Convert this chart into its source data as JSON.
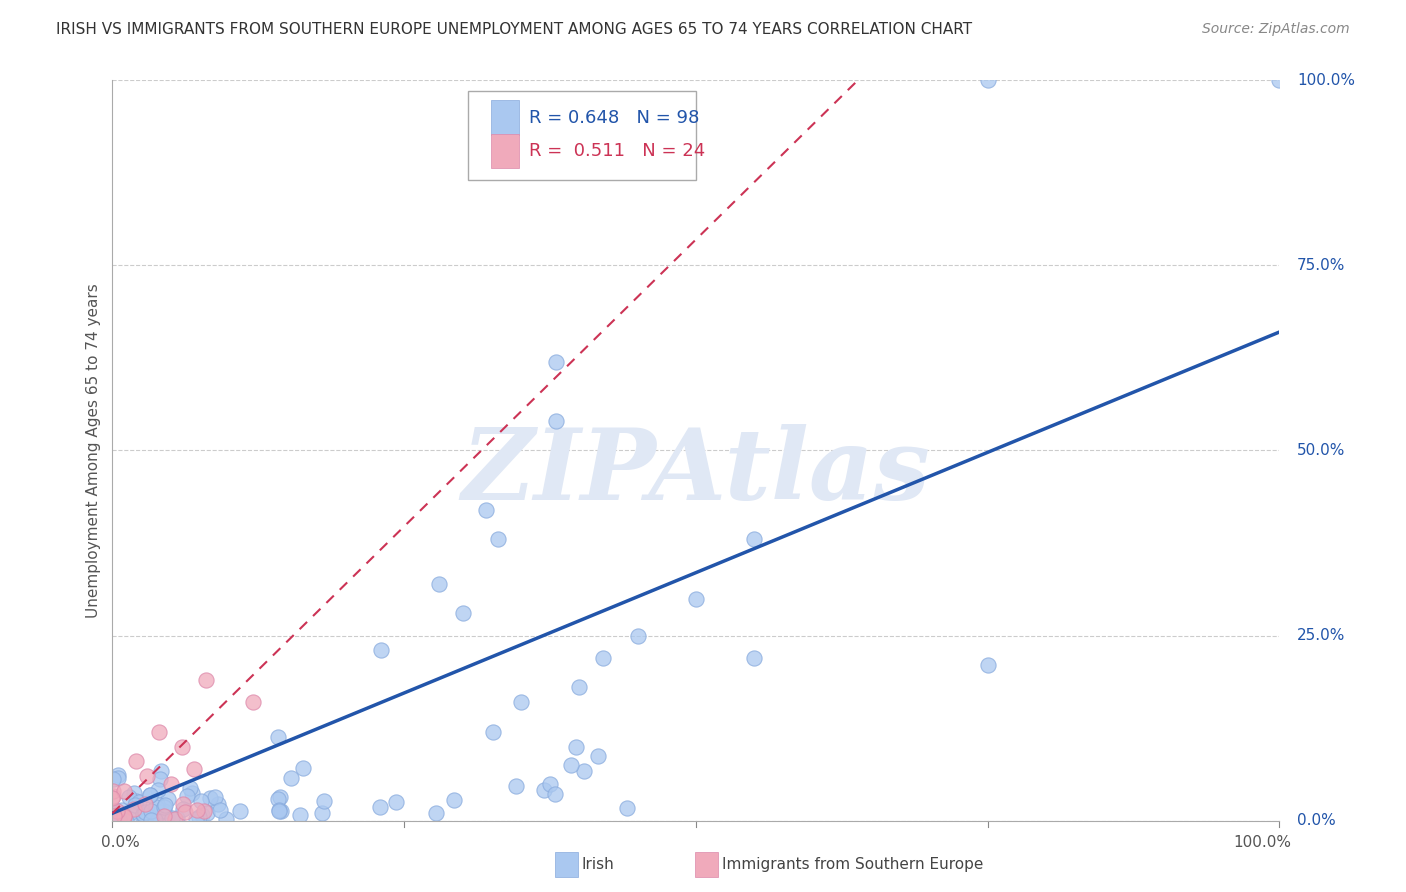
{
  "title": "IRISH VS IMMIGRANTS FROM SOUTHERN EUROPE UNEMPLOYMENT AMONG AGES 65 TO 74 YEARS CORRELATION CHART",
  "source": "Source: ZipAtlas.com",
  "ylabel": "Unemployment Among Ages 65 to 74 years",
  "ytick_labels": [
    "0.0%",
    "25.0%",
    "50.0%",
    "75.0%",
    "100.0%"
  ],
  "ytick_values": [
    0.0,
    0.25,
    0.5,
    0.75,
    1.0
  ],
  "xtick_labels": [
    "0.0%",
    "100.0%"
  ],
  "xtick_values": [
    0.0,
    1.0
  ],
  "legend_irish": "Irish",
  "legend_southern": "Immigrants from Southern Europe",
  "r_irish": 0.648,
  "n_irish": 98,
  "r_southern": 0.511,
  "n_southern": 24,
  "irish_color": "#aac8f0",
  "irish_edge_color": "#88aadd",
  "southern_color": "#f0aabb",
  "southern_edge_color": "#dd88aa",
  "irish_line_color": "#2255aa",
  "southern_line_color": "#cc3355",
  "background_color": "#ffffff",
  "grid_color": "#cccccc",
  "watermark": "ZIPAtlas",
  "watermark_color": "#e0e8f5",
  "irish_slope": 0.65,
  "irish_intercept": 0.01,
  "southern_slope": 1.55,
  "southern_intercept": 0.01,
  "title_fontsize": 11,
  "source_fontsize": 10,
  "axis_label_fontsize": 11,
  "tick_fontsize": 11,
  "legend_fontsize": 13
}
